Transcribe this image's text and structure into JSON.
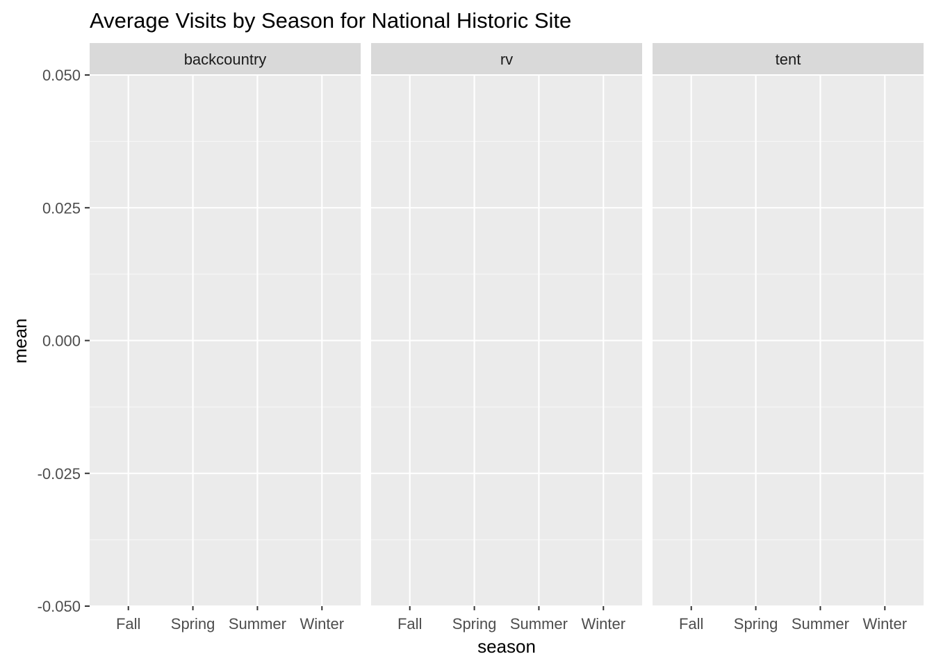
{
  "chart_data": {
    "type": "bar",
    "title": "Average Visits by Season for National Historic Site",
    "xlabel": "season",
    "ylabel": "mean",
    "categories": [
      "Fall",
      "Spring",
      "Summer",
      "Winter"
    ],
    "facets": [
      "backcountry",
      "rv",
      "tent"
    ],
    "series": [],
    "ylim": [
      -0.05,
      0.05
    ],
    "yticks": [
      "0.050",
      "0.025",
      "0.000",
      "-0.025",
      "-0.050"
    ],
    "ytick_values": [
      0.05,
      0.025,
      0.0,
      -0.025,
      -0.05
    ],
    "grid": true,
    "legend": "none",
    "colors": {
      "panel_background": "#EBEBEB",
      "strip_background": "#D9D9D9",
      "grid_major": "#FFFFFF",
      "tick_text": "#4D4D4D",
      "strip_text": "#1A1A1A",
      "title_text": "#000000"
    }
  }
}
